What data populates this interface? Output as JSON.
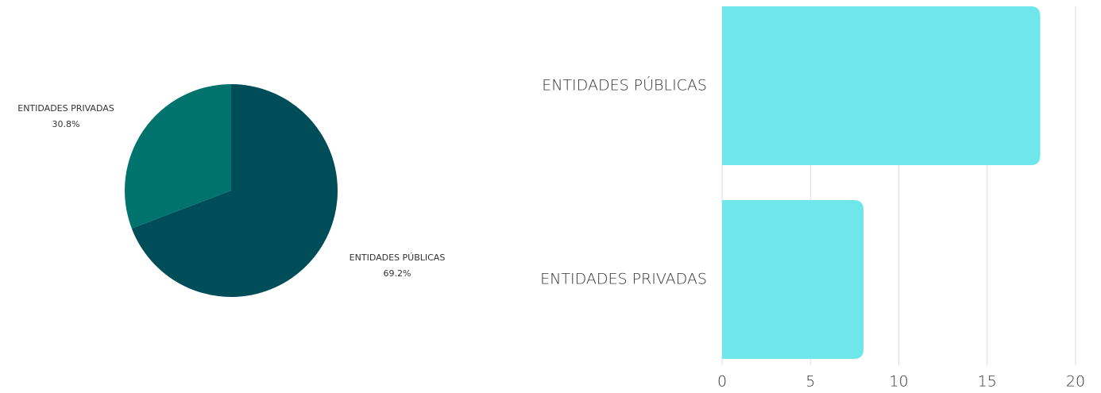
{
  "chart_data": [
    {
      "type": "pie",
      "categories": [
        "ENTIDADES PÚBLICAS",
        "ENTIDADES PRIVADAS"
      ],
      "values": [
        69.2,
        30.8
      ],
      "value_labels": [
        "69.2%",
        "30.8%"
      ],
      "colors": [
        "#004d5a",
        "#00736e"
      ]
    },
    {
      "type": "hbar",
      "categories": [
        "ENTIDADES PÚBLICAS",
        "ENTIDADES PRIVADAS"
      ],
      "values": [
        18,
        8
      ],
      "color": "#6ee6ea",
      "xlim": [
        0,
        20
      ],
      "xticks": [
        0,
        5,
        10,
        15,
        20
      ],
      "grid": true
    }
  ]
}
